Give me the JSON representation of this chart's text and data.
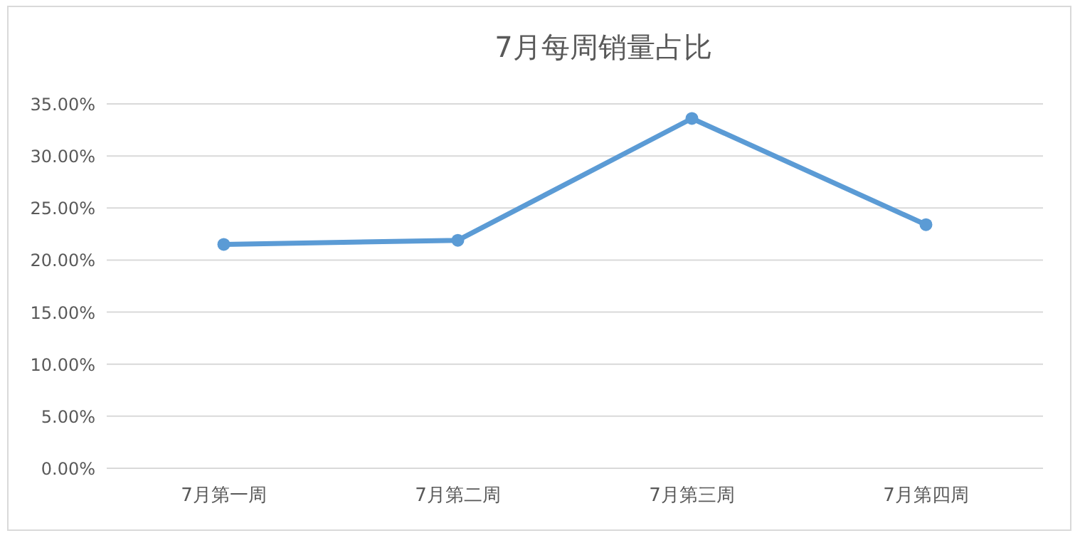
{
  "chart_data": {
    "type": "line",
    "title": "7月每周销量占比",
    "categories": [
      "7月第一周",
      "7月第二周",
      "7月第三周",
      "7月第四周"
    ],
    "series": [
      {
        "color": "#5b9bd5",
        "values": [
          21.5,
          21.9,
          33.6,
          23.4
        ]
      }
    ],
    "ylim": [
      0,
      35
    ],
    "yticks": [
      {
        "value": 0,
        "label": "0.00%"
      },
      {
        "value": 5,
        "label": "5.00%"
      },
      {
        "value": 10,
        "label": "10.00%"
      },
      {
        "value": 15,
        "label": "15.00%"
      },
      {
        "value": 20,
        "label": "20.00%"
      },
      {
        "value": 25,
        "label": "25.00%"
      },
      {
        "value": 30,
        "label": "30.00%"
      },
      {
        "value": 35,
        "label": "35.00%"
      }
    ],
    "grid": "y",
    "marker": "circle",
    "line_style": "solid"
  }
}
